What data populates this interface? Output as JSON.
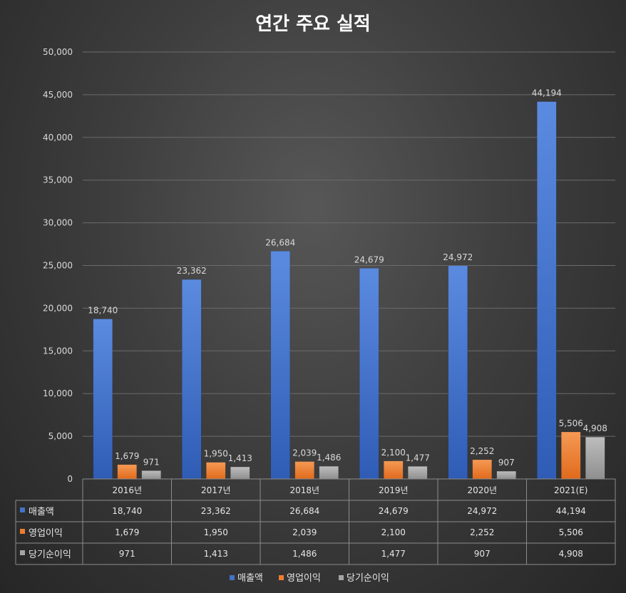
{
  "chart_data": {
    "type": "bar",
    "title": "연간 주요 실적",
    "categories": [
      "2016년",
      "2017년",
      "2018년",
      "2019년",
      "2020년",
      "2021(E)"
    ],
    "series": [
      {
        "name": "매출액",
        "color": "#4472c4",
        "values": [
          18740,
          23362,
          26684,
          24679,
          24972,
          44194
        ]
      },
      {
        "name": "영업이익",
        "color": "#ed7d31",
        "values": [
          1679,
          1950,
          2039,
          2100,
          2252,
          5506
        ]
      },
      {
        "name": "당기순이익",
        "color": "#a5a5a5",
        "values": [
          971,
          1413,
          1486,
          1477,
          907,
          4908
        ]
      }
    ],
    "ylim": [
      0,
      50000
    ],
    "yticks": [
      0,
      5000,
      10000,
      15000,
      20000,
      25000,
      30000,
      35000,
      40000,
      45000,
      50000
    ],
    "grid": true,
    "data_table": true,
    "legend_position": "bottom"
  }
}
